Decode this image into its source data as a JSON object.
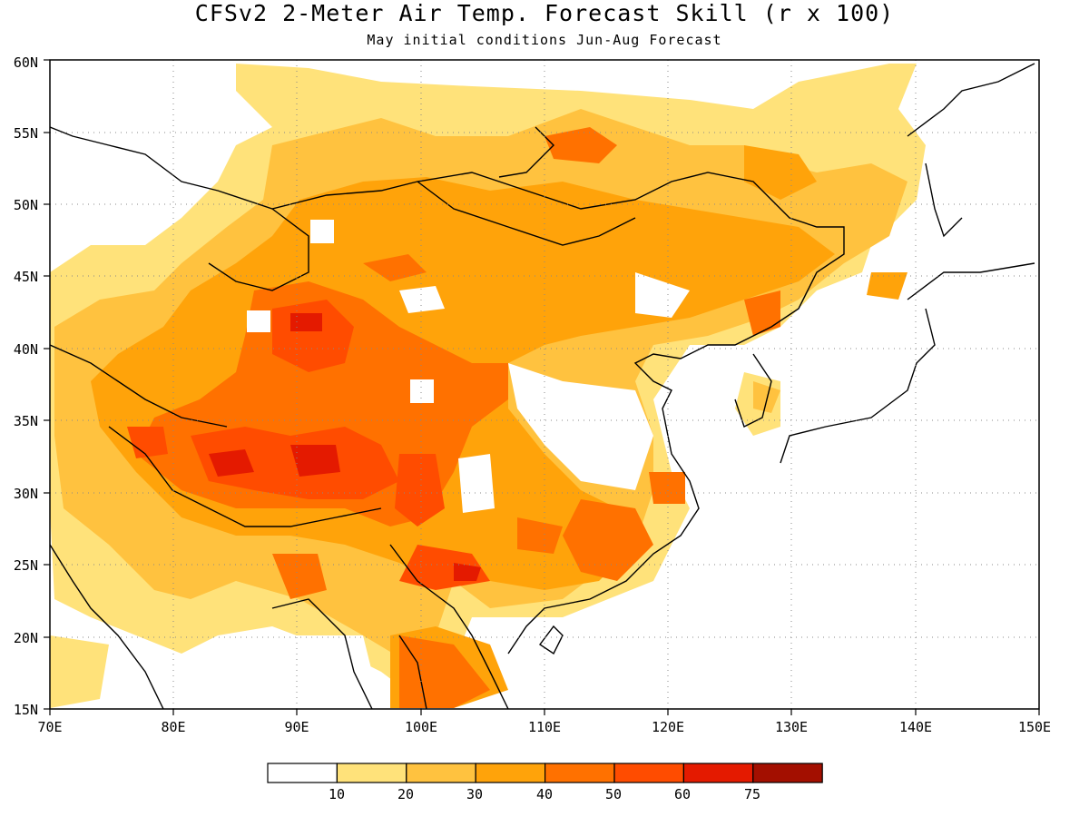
{
  "title": "CFSv2 2-Meter Air Temp. Forecast Skill (r x 100)",
  "subtitle": "May initial conditions  Jun-Aug Forecast",
  "map": {
    "lon_range": [
      70,
      150
    ],
    "lat_range": [
      15,
      60
    ],
    "lon_ticks": [
      "70E",
      "80E",
      "90E",
      "100E",
      "110E",
      "120E",
      "130E",
      "140E",
      "150E"
    ],
    "lat_ticks": [
      "15N",
      "20N",
      "25N",
      "30N",
      "35N",
      "40N",
      "45N",
      "50N",
      "55N",
      "60N"
    ],
    "grid": "dotted"
  },
  "colorbar": {
    "colors": [
      "#ffffff",
      "#ffe27a",
      "#ffc23f",
      "#ffa30a",
      "#ff7100",
      "#ff4c00",
      "#e41a00",
      "#a30f00"
    ],
    "labels": [
      "10",
      "20",
      "30",
      "40",
      "50",
      "60",
      "75"
    ]
  }
}
